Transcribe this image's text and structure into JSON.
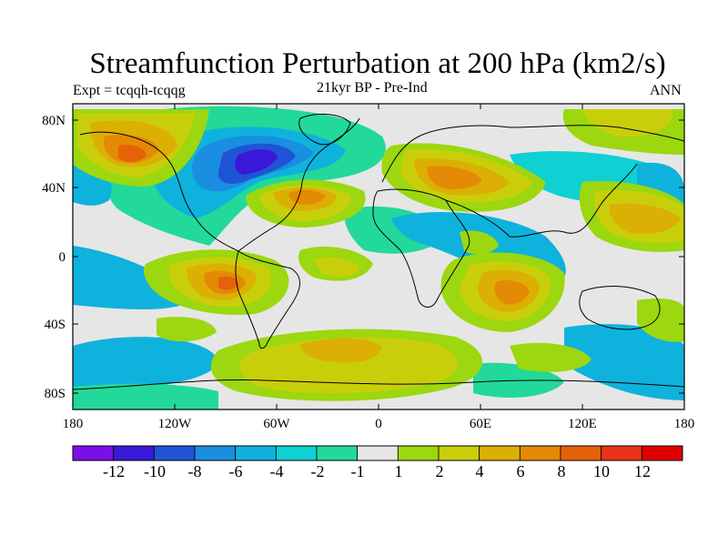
{
  "title": "Streamfunction Perturbation at 200 hPa (km2/s)",
  "left_subtitle": "Expt = tcqqh-tcqqg",
  "center_subtitle": "21kyr BP - Pre-Ind",
  "right_subtitle": "ANN",
  "lat_labels": [
    "80N",
    "40N",
    "0",
    "40S",
    "80S"
  ],
  "lon_labels": [
    "180",
    "120W",
    "60W",
    "0",
    "60E",
    "120E",
    "180"
  ],
  "colorbar": {
    "labels": [
      "-12",
      "-10",
      "-8",
      "-6",
      "-4",
      "-2",
      "-1",
      "1",
      "2",
      "4",
      "6",
      "8",
      "10",
      "12"
    ],
    "colors": [
      "#7a10e6",
      "#3a18d8",
      "#1f55d4",
      "#1a8ee0",
      "#0fb2dc",
      "#0fd0d2",
      "#22d99a",
      "#e6e6e6",
      "#9cd70f",
      "#c8cf0a",
      "#dcaf05",
      "#e48a05",
      "#e46208",
      "#e83418",
      "#e00000"
    ]
  },
  "colors": {
    "blue3": "#1f55d4",
    "blue4": "#1a8ee0",
    "cyan": "#0fb2dc",
    "cyan2": "#0fd0d2",
    "teal": "#22d99a",
    "gray": "#e6e6e6",
    "lime": "#9cd70f",
    "yellow": "#c8cf0a",
    "gold": "#dcaf05",
    "orange": "#e48a05",
    "darkorange": "#e46208",
    "purple": "#3a18d8"
  }
}
